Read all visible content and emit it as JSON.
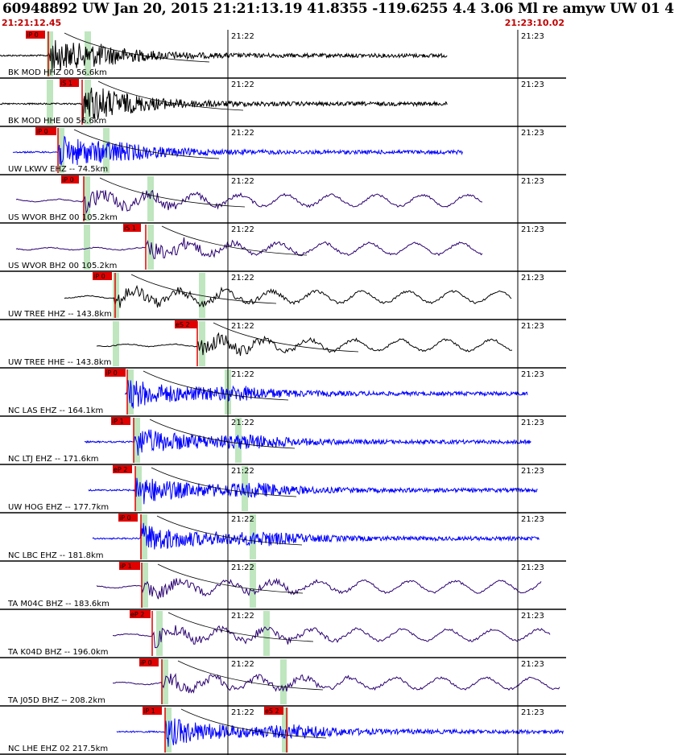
{
  "header": {
    "title": "60948892 UW Jan 20, 2015 21:21:13.19   41.8355 -119.6255  4.4 3.06 Ml re amyw UW 01   4",
    "start_time": "21:21:12.45",
    "end_time": "21:23:10.02"
  },
  "chart_data": {
    "type": "line",
    "time_labels": [
      "21:22",
      "21:23"
    ],
    "traces": [
      {
        "label": "BK MOD HHZ 00 56.6km",
        "color": "#000000",
        "picks": [
          "iP 0"
        ]
      },
      {
        "label": "BK MOD HHE 00 56.6km",
        "color": "#000000",
        "picks": [
          "iS 1"
        ]
      },
      {
        "label": "UW LKWV EHZ -- 74.5km",
        "color": "#0000ff",
        "picks": [
          "iP 0"
        ]
      },
      {
        "label": "US WVOR BHZ 00 105.2km",
        "color": "#2a0070",
        "picks": [
          "iP 0"
        ]
      },
      {
        "label": "US WVOR BH2 00 105.2km",
        "color": "#2a0070",
        "picks": [
          "iS 1"
        ]
      },
      {
        "label": "UW TREE HHZ -- 143.8km",
        "color": "#000000",
        "picks": [
          "iP 0"
        ]
      },
      {
        "label": "UW TREE HHE -- 143.8km",
        "color": "#000000",
        "picks": [
          "eS 2"
        ]
      },
      {
        "label": "NC LAS EHZ -- 164.1km",
        "color": "#0000ff",
        "picks": [
          "iP 0"
        ]
      },
      {
        "label": "NC LTJ EHZ -- 171.6km",
        "color": "#0000ff",
        "picks": [
          "iP 1"
        ]
      },
      {
        "label": "UW HOG EHZ -- 177.7km",
        "color": "#0000ff",
        "picks": [
          "eP 2"
        ]
      },
      {
        "label": "NC LBC EHZ -- 181.8km",
        "color": "#0000ff",
        "picks": [
          "iP 0"
        ]
      },
      {
        "label": "TA M04C BHZ -- 183.6km",
        "color": "#2a0070",
        "picks": [
          "iP 1"
        ]
      },
      {
        "label": "TA K04D BHZ -- 196.0km",
        "color": "#2a0070",
        "picks": [
          "eP 2"
        ]
      },
      {
        "label": "TA J05D BHZ -- 208.2km",
        "color": "#2a0070",
        "picks": [
          "iP 0"
        ]
      },
      {
        "label": "NC LHE EHZ 02 217.5km",
        "color": "#0000ff",
        "picks": [
          "iP 1",
          "eS 2"
        ]
      }
    ]
  }
}
